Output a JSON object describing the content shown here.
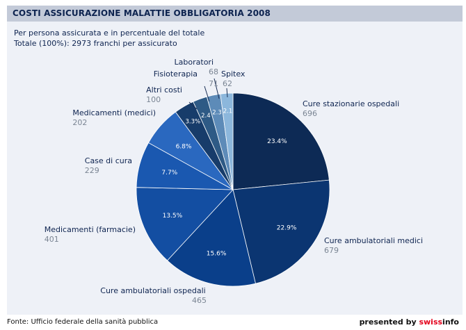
{
  "header": {
    "title": "COSTI ASSICURAZIONE MALATTIE OBBLIGATORIA 2008"
  },
  "subtitle": [
    "Per persona assicurata e in percentuale del totale",
    "Totale (100%): 2973 franchi per assicurato"
  ],
  "footer": {
    "source": "Fonte: Ufficio federale della sanità pubblica",
    "presented_by": "presented by ",
    "brand_a": "swiss",
    "brand_b": "info"
  },
  "chart_data": {
    "type": "pie",
    "total": 2973,
    "unit": "franchi",
    "slices": [
      {
        "label": "Cure stazionarie ospedali",
        "value": 696,
        "percent": "23.4%",
        "color": "#0d2a55"
      },
      {
        "label": "Cure ambulatoriali medici",
        "value": 679,
        "percent": "22.9%",
        "color": "#0b3571"
      },
      {
        "label": "Cure ambulatoriali ospedali",
        "value": 465,
        "percent": "15.6%",
        "color": "#0a3f8a"
      },
      {
        "label": "Medicamenti (farmacie)",
        "value": 401,
        "percent": "13.5%",
        "color": "#134ea2"
      },
      {
        "label": "Case di cura",
        "value": 229,
        "percent": "7.7%",
        "color": "#1a58b0"
      },
      {
        "label": "Medicamenti (medici)",
        "value": 202,
        "percent": "6.8%",
        "color": "#2a68bf"
      },
      {
        "label": "Altri costi",
        "value": 100,
        "percent": "3.3%",
        "color": "#173c6a"
      },
      {
        "label": "Fisioterapia",
        "value": 71,
        "percent": "2.4",
        "color": "#2e5a85"
      },
      {
        "label": "Laboratori",
        "value": 68,
        "percent": "2.3",
        "color": "#5d8bb8"
      },
      {
        "label": "Spitex",
        "value": 62,
        "percent": "2.1",
        "color": "#8cb7dc"
      }
    ]
  }
}
